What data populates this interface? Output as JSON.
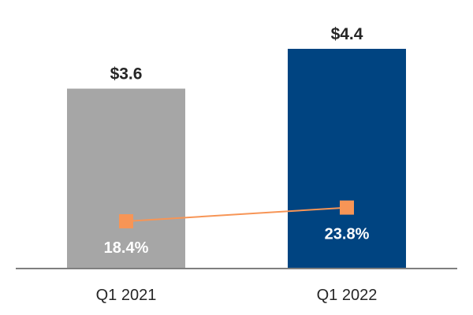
{
  "chart_data": {
    "type": "bar",
    "categories": [
      "Q1 2021",
      "Q1 2022"
    ],
    "series": [
      {
        "type": "bar",
        "values": [
          3.6,
          4.4
        ],
        "labels": [
          "$3.6",
          "$4.4"
        ],
        "colors": [
          "#a6a6a6",
          "#004481"
        ]
      },
      {
        "type": "line",
        "values": [
          18.4,
          23.8
        ],
        "labels": [
          "18.4%",
          "23.8%"
        ],
        "color": "#f79556"
      }
    ],
    "grid": false,
    "legend": "none"
  }
}
